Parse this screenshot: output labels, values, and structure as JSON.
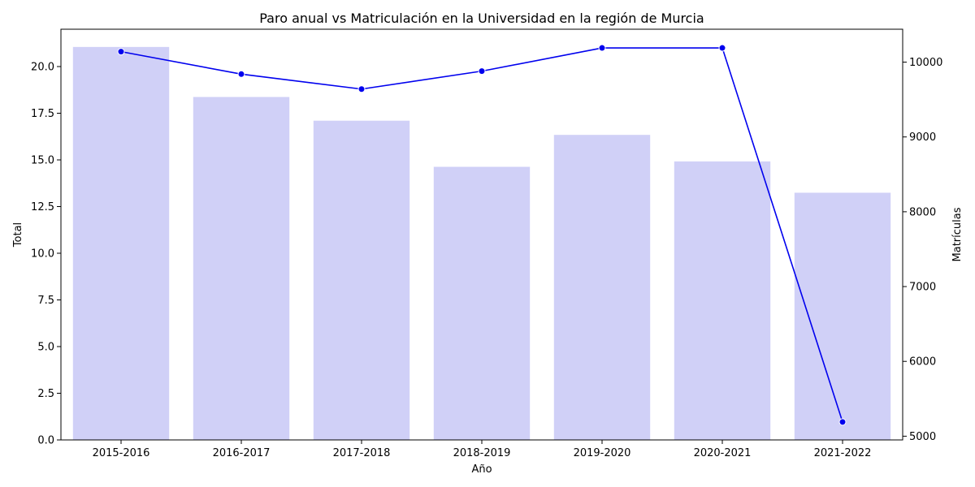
{
  "chart_data": {
    "type": "bar",
    "title": "Paro anual vs Matriculación en la Universidad en la región de Murcia",
    "xlabel": "Año",
    "ylabel": "Total",
    "y2label": "Matrículas",
    "categories": [
      "2015-2016",
      "2016-2017",
      "2017-2018",
      "2018-2019",
      "2019-2020",
      "2020-2021",
      "2021-2022"
    ],
    "series": [
      {
        "type": "bar",
        "axis": "left",
        "color": "#d0d0f7",
        "values": [
          21.05,
          18.37,
          17.1,
          14.63,
          16.34,
          14.92,
          13.24
        ]
      },
      {
        "type": "line",
        "axis": "right",
        "color": "#0000ee",
        "marker": "circle",
        "values": [
          10140,
          9840,
          9640,
          9880,
          10190,
          10190,
          5190
        ]
      }
    ],
    "ylim": [
      0,
      22
    ],
    "yticks": [
      "0.0",
      "2.5",
      "5.0",
      "7.5",
      "10.0",
      "12.5",
      "15.0",
      "17.5",
      "20.0"
    ],
    "y2lim": [
      4950,
      10440
    ],
    "y2ticks": [
      "5000",
      "6000",
      "7000",
      "8000",
      "9000",
      "10000"
    ],
    "grid": false
  }
}
